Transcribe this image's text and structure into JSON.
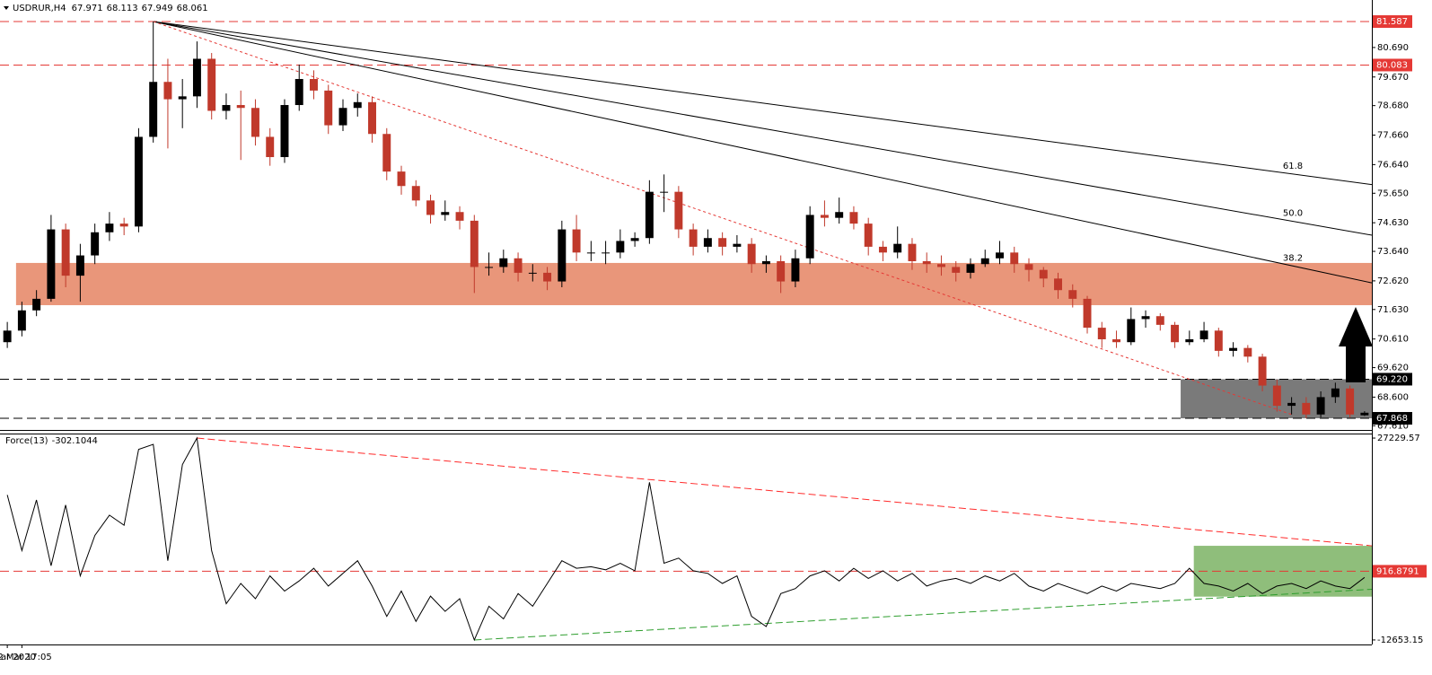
{
  "chart_data": {
    "type": "candlestick",
    "symbol": "USDRUR,H4",
    "categories": [
      "10 Mar 2020",
      "12 Mar 17:05",
      null,
      null,
      null,
      null,
      null,
      null,
      null,
      null,
      null,
      null,
      null,
      null,
      null,
      null,
      null,
      null,
      null,
      null,
      null,
      null,
      null,
      null,
      null,
      null,
      null,
      null,
      null,
      null,
      null,
      null,
      null,
      null,
      null,
      null,
      null,
      null,
      null,
      null,
      null,
      null,
      null,
      null,
      null,
      null,
      null,
      null,
      null,
      null,
      null,
      null,
      null,
      null,
      null,
      null,
      null,
      null,
      null,
      null,
      null,
      null,
      null,
      null,
      null,
      null,
      null,
      null,
      null,
      null,
      null,
      null,
      null,
      null,
      null,
      null,
      null,
      null,
      null,
      null,
      null,
      null,
      null,
      null,
      null,
      null,
      null,
      null,
      null,
      null,
      null,
      null,
      null,
      null
    ],
    "open": [
      70.5,
      70.9,
      71.6,
      72.0,
      74.4,
      72.8,
      73.5,
      74.3,
      74.6,
      74.5,
      77.6,
      79.5,
      78.9,
      79.0,
      80.3,
      78.5,
      78.7,
      78.6,
      77.6,
      76.9,
      78.7,
      79.6,
      79.2,
      78.0,
      78.6,
      78.8,
      77.7,
      76.4,
      75.9,
      75.4,
      74.9,
      75.0,
      74.7,
      73.1,
      73.1,
      73.4,
      72.9,
      72.9,
      72.6,
      74.4,
      73.6,
      73.6,
      73.6,
      74.0,
      74.1,
      75.7,
      75.7,
      74.4,
      73.8,
      74.1,
      73.8,
      73.9,
      73.2,
      73.3,
      72.6,
      73.4,
      74.9,
      74.8,
      75.0,
      74.6,
      73.8,
      73.6,
      73.9,
      73.3,
      73.2,
      73.1,
      72.9,
      73.2,
      73.4,
      73.6,
      73.2,
      73.0,
      72.7,
      72.3,
      72.0,
      71.0,
      70.6,
      70.5,
      71.3,
      71.4,
      71.1,
      70.5,
      70.6,
      70.9,
      70.2,
      70.3,
      70.0,
      69.0,
      68.3,
      68.4,
      68.0,
      68.6,
      68.9,
      67.971
    ],
    "high": [
      71.2,
      71.9,
      72.3,
      74.9,
      74.6,
      73.9,
      74.6,
      75.0,
      74.8,
      77.9,
      81.587,
      80.3,
      79.6,
      80.9,
      80.5,
      79.1,
      79.2,
      78.9,
      77.9,
      78.9,
      80.1,
      79.9,
      79.4,
      78.9,
      79.1,
      79.0,
      77.9,
      76.6,
      76.1,
      75.6,
      75.4,
      75.2,
      74.9,
      73.6,
      73.7,
      73.6,
      73.2,
      73.1,
      74.7,
      74.9,
      74.0,
      74.0,
      74.4,
      74.3,
      76.1,
      76.3,
      75.9,
      74.6,
      74.4,
      74.3,
      74.2,
      74.1,
      73.5,
      73.5,
      73.7,
      75.2,
      75.4,
      75.5,
      75.2,
      74.8,
      74.0,
      74.5,
      74.1,
      73.6,
      73.5,
      73.3,
      73.4,
      73.7,
      74.0,
      73.8,
      73.4,
      73.1,
      72.9,
      72.5,
      72.1,
      71.2,
      70.9,
      71.7,
      71.6,
      71.5,
      71.2,
      70.9,
      71.2,
      71.0,
      70.5,
      70.4,
      70.1,
      69.2,
      68.6,
      68.6,
      68.8,
      69.1,
      69.0,
      68.113
    ],
    "low": [
      70.3,
      70.7,
      71.4,
      71.9,
      72.4,
      71.9,
      73.2,
      74.0,
      74.2,
      74.3,
      77.4,
      77.2,
      77.9,
      78.6,
      78.2,
      78.2,
      76.8,
      77.3,
      76.6,
      76.7,
      78.5,
      78.9,
      77.7,
      77.8,
      78.3,
      77.4,
      76.1,
      75.6,
      75.2,
      74.6,
      74.7,
      74.4,
      72.2,
      72.8,
      72.9,
      72.6,
      72.6,
      72.3,
      72.4,
      73.3,
      73.3,
      73.2,
      73.4,
      73.8,
      73.9,
      75.0,
      74.1,
      73.5,
      73.6,
      73.5,
      73.6,
      72.9,
      72.9,
      72.2,
      72.4,
      73.2,
      74.5,
      74.6,
      74.4,
      73.5,
      73.3,
      73.4,
      73.0,
      72.9,
      72.8,
      72.6,
      72.7,
      73.1,
      73.2,
      72.9,
      72.6,
      72.4,
      72.0,
      71.7,
      70.8,
      70.3,
      70.3,
      70.4,
      71.0,
      70.9,
      70.3,
      70.4,
      70.5,
      70.0,
      70.0,
      69.8,
      68.8,
      68.1,
      68.0,
      67.868,
      67.9,
      68.4,
      67.9,
      67.949
    ],
    "close": [
      70.9,
      71.6,
      72.0,
      74.4,
      72.8,
      73.5,
      74.3,
      74.6,
      74.5,
      77.6,
      79.5,
      78.9,
      79.0,
      80.3,
      78.5,
      78.7,
      78.6,
      77.6,
      76.9,
      78.7,
      79.6,
      79.2,
      78.0,
      78.6,
      78.8,
      77.7,
      76.4,
      75.9,
      75.4,
      74.9,
      75.0,
      74.7,
      73.1,
      73.1,
      73.4,
      72.9,
      72.9,
      72.6,
      74.4,
      73.6,
      73.6,
      73.6,
      74.0,
      74.1,
      75.7,
      75.7,
      74.4,
      73.8,
      74.1,
      73.8,
      73.9,
      73.2,
      73.3,
      72.6,
      73.4,
      74.9,
      74.8,
      75.0,
      74.6,
      73.8,
      73.6,
      73.9,
      73.3,
      73.2,
      73.1,
      72.9,
      73.2,
      73.4,
      73.6,
      73.2,
      73.0,
      72.7,
      72.3,
      72.0,
      71.0,
      70.6,
      70.5,
      71.3,
      71.4,
      71.1,
      70.5,
      70.6,
      70.9,
      70.2,
      70.3,
      70.0,
      69.0,
      68.3,
      68.4,
      68.0,
      68.6,
      68.9,
      68.0,
      68.061
    ],
    "up_color": "#000000",
    "down_color": "#c0392b",
    "ylim": [
      67.496,
      82.332
    ],
    "yticks": [
      {
        "value": 80.69,
        "label": "80.690"
      },
      {
        "value": 79.67,
        "label": "79.670"
      },
      {
        "value": 78.68,
        "label": "78.680"
      },
      {
        "value": 77.66,
        "label": "77.660"
      },
      {
        "value": 76.64,
        "label": "76.640"
      },
      {
        "value": 75.65,
        "label": "75.650"
      },
      {
        "value": 74.63,
        "label": "74.630"
      },
      {
        "value": 73.64,
        "label": "73.640"
      },
      {
        "value": 72.62,
        "label": "72.620"
      },
      {
        "value": 71.63,
        "label": "71.630"
      },
      {
        "value": 70.61,
        "label": "70.610"
      },
      {
        "value": 69.62,
        "label": "69.620"
      },
      {
        "value": 68.6,
        "label": "68.600"
      },
      {
        "value": 67.61,
        "label": "67.610"
      }
    ],
    "levels": [
      {
        "value": 81.587,
        "color": "#e53935"
      },
      {
        "value": 80.083,
        "color": "#e53935"
      },
      {
        "value": 69.22,
        "label": "69.220",
        "color": "#000000"
      },
      {
        "value": 67.868,
        "color": "#000000"
      }
    ],
    "zones": [
      {
        "x": [
          0.6,
          93.5
        ],
        "y": [
          71.78,
          73.24
        ],
        "color": "#e9967a"
      },
      {
        "x": [
          80.4,
          93.5
        ],
        "y": [
          67.868,
          69.22
        ],
        "color": "#7a7a7a"
      }
    ],
    "trendline": {
      "x": [
        10,
        88
      ],
      "y": [
        81.587,
        68.0
      ],
      "color": "#e53935"
    },
    "fan": {
      "origin": [
        10,
        81.587
      ],
      "end_x": 93.5,
      "lines": [
        {
          "label": "61.8",
          "end": 75.95
        },
        {
          "label": "50.0",
          "end": 74.2
        },
        {
          "label": "38.2",
          "end": 72.55
        }
      ]
    },
    "force": {
      "name": "Force(13)",
      "color": "#000000",
      "values": [
        16000,
        5000,
        15000,
        2000,
        14000,
        0,
        8000,
        12000,
        10000,
        25000,
        26000,
        3000,
        22000,
        27229.57,
        5000,
        -5500,
        -1500,
        -4500,
        0,
        -3000,
        -1000,
        1500,
        -2000,
        500,
        3000,
        -2000,
        -8000,
        -3000,
        -9000,
        -4000,
        -7000,
        -4500,
        -12653.15,
        -6000,
        -8500,
        -3500,
        -6000,
        -1500,
        3000,
        1500,
        1800,
        1200,
        2500,
        1000,
        18500,
        2500,
        3500,
        1000,
        500,
        -1500,
        0,
        -8000,
        -10000,
        -3500,
        -2500,
        0,
        1000,
        -1000,
        1500,
        -500,
        1000,
        -1000,
        500,
        -2000,
        -1000,
        -500,
        -1500,
        0,
        -1000,
        500,
        -2000,
        -3000,
        -1500,
        -2500,
        -3500,
        -2000,
        -3000,
        -1500,
        -2000,
        -2500,
        -1500,
        1500,
        -1500,
        -2000,
        -3000,
        -1500,
        -3500,
        -2000,
        -1500,
        -2500,
        -1000,
        -2000,
        -2500,
        -302.1044
      ],
      "ylim": [
        -13905,
        27945
      ],
      "yticks": [
        27229.57,
        -12653.15
      ],
      "level": 916.8791,
      "level_color": "#e53935",
      "upper_trend": {
        "x": [
          13,
          93.5
        ],
        "y": [
          27229.57,
          5945
        ],
        "color": "#ff2a2a"
      },
      "lower_trend": {
        "x": [
          32,
          93.5
        ],
        "y": [
          -12653.15,
          -2640
        ],
        "color": "#2e9e2e"
      },
      "zone": {
        "x": [
          81.3,
          93.5
        ],
        "y": [
          -4100,
          5945
        ],
        "color": "#6aa84f"
      }
    }
  }
}
